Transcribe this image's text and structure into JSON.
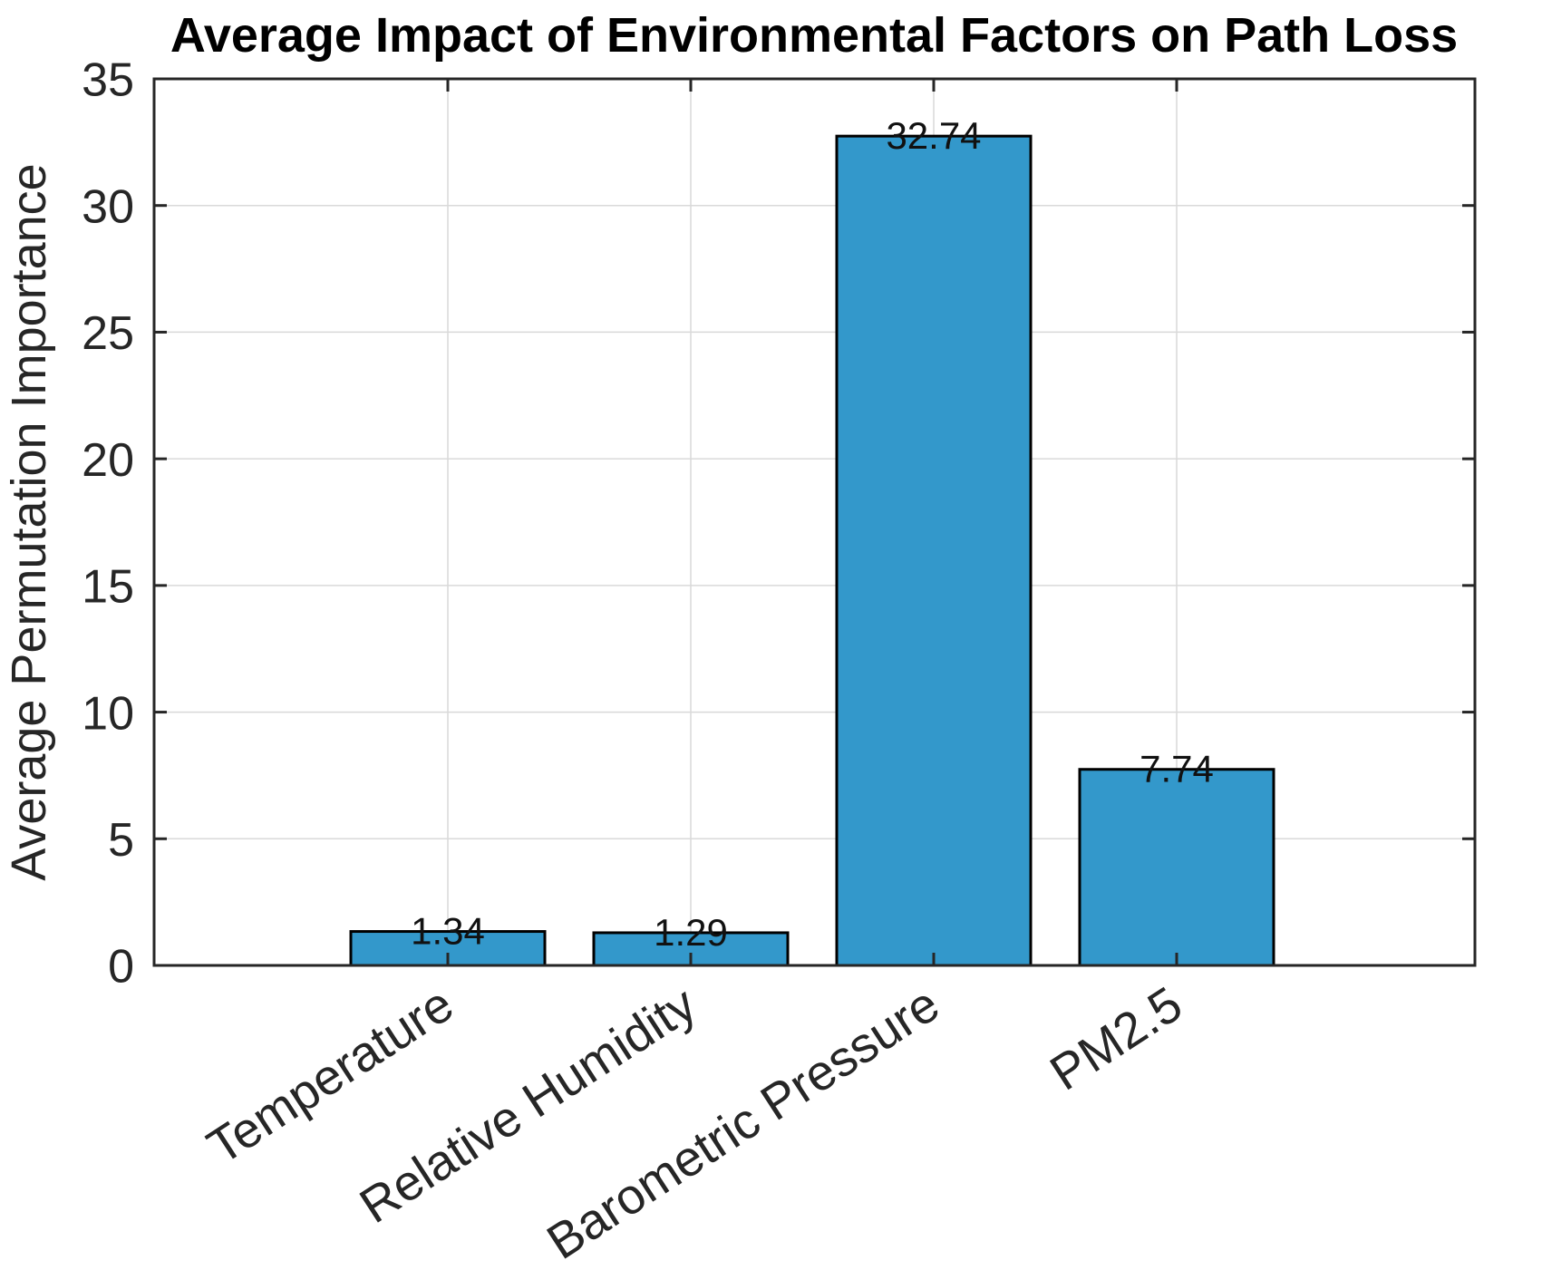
{
  "figure": {
    "background": "#ffffff"
  },
  "chart_data": {
    "type": "bar",
    "title": "Average Impact of Environmental Factors on Path Loss",
    "xlabel": "",
    "ylabel": "Average Permutation Importance",
    "categories": [
      "Temperature",
      "Relative Humidity",
      "Barometric Pressure",
      "PM2.5"
    ],
    "values": [
      1.34,
      1.29,
      32.74,
      7.74
    ],
    "value_labels": [
      "1.34",
      "1.29",
      "32.74",
      "7.74"
    ],
    "ylim": [
      0,
      35
    ],
    "yticks": [
      0,
      5,
      10,
      15,
      20,
      25,
      30,
      35
    ],
    "ytick_labels": [
      "0",
      "5",
      "10",
      "15",
      "20",
      "25",
      "30",
      "35"
    ],
    "grid": true,
    "grid_horizontal": true,
    "grid_vertical": true,
    "legend_position": "none",
    "x_tick_rotation_deg": 33,
    "bar_color": "#3398CB",
    "bar_edge_color": "#000000",
    "axis_color": "#262626",
    "grid_color": "#D9D9D9",
    "title_color": "#000000",
    "label_color": "#262626",
    "value_label_color": "#111111"
  }
}
